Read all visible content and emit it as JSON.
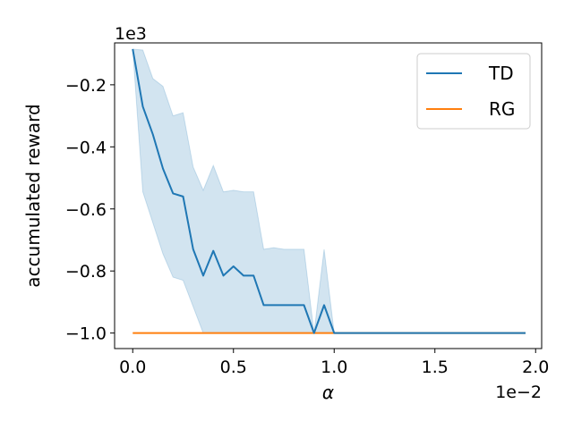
{
  "chart_data": {
    "type": "line",
    "xlabel": "α",
    "ylabel": "accumulated reward",
    "x_offset_label": "1e−2",
    "y_offset_label": "1e3",
    "xlim": [
      -0.0009,
      0.0203
    ],
    "ylim": [
      -1.05,
      -0.065
    ],
    "xticks": [
      0,
      0.005,
      0.01,
      0.015,
      0.02
    ],
    "xtick_labels": [
      "0.0",
      "0.5",
      "1.0",
      "1.5",
      "2.0"
    ],
    "yticks": [
      -1.0,
      -0.8,
      -0.6,
      -0.4,
      -0.2
    ],
    "ytick_labels": [
      "−1.0",
      "−0.8",
      "−0.6",
      "−0.4",
      "−0.2"
    ],
    "grid": false,
    "legend_position": "top-right",
    "colors": {
      "TD": "#1f77b4",
      "RG": "#ff7f0e",
      "band": "#1f77b4"
    },
    "x": [
      0,
      0.0005,
      0.001,
      0.0015,
      0.002,
      0.0025,
      0.003,
      0.0035,
      0.004,
      0.0045,
      0.005,
      0.0055,
      0.006,
      0.0065,
      0.007,
      0.0075,
      0.008,
      0.0085,
      0.009,
      0.0095,
      0.01,
      0.0105,
      0.011,
      0.0115,
      0.012,
      0.0125,
      0.013,
      0.0135,
      0.014,
      0.0145,
      0.015,
      0.0155,
      0.016,
      0.0165,
      0.017,
      0.0175,
      0.018,
      0.0185,
      0.019,
      0.0195
    ],
    "series": [
      {
        "name": "TD",
        "values": [
          -0.085,
          -0.27,
          -0.36,
          -0.47,
          -0.55,
          -0.56,
          -0.73,
          -0.815,
          -0.735,
          -0.815,
          -0.785,
          -0.815,
          -0.815,
          -0.91,
          -0.91,
          -0.91,
          -0.91,
          -0.91,
          -1.0,
          -0.91,
          -1.0,
          -1.0,
          -1.0,
          -1.0,
          -1.0,
          -1.0,
          -1.0,
          -1.0,
          -1.0,
          -1.0,
          -1.0,
          -1.0,
          -1.0,
          -1.0,
          -1.0,
          -1.0,
          -1.0,
          -1.0,
          -1.0,
          -1.0
        ],
        "band_upper": [
          -0.085,
          -0.088,
          -0.18,
          -0.205,
          -0.3,
          -0.29,
          -0.465,
          -0.54,
          -0.46,
          -0.545,
          -0.54,
          -0.545,
          -0.545,
          -0.73,
          -0.725,
          -0.73,
          -0.73,
          -0.73,
          -1.0,
          -0.73,
          -1.0,
          -1.0,
          -1.0,
          -1.0,
          -1.0,
          -1.0,
          -1.0,
          -1.0,
          -1.0,
          -1.0,
          -1.0,
          -1.0,
          -1.0,
          -1.0,
          -1.0,
          -1.0,
          -1.0,
          -1.0,
          -1.0,
          -1.0
        ],
        "band_lower": [
          -0.085,
          -0.545,
          -0.645,
          -0.745,
          -0.82,
          -0.83,
          -0.915,
          -1.0,
          -1.0,
          -1.0,
          -1.0,
          -1.0,
          -1.0,
          -1.0,
          -1.0,
          -1.0,
          -1.0,
          -1.0,
          -1.0,
          -1.0,
          -1.0,
          -1.0,
          -1.0,
          -1.0,
          -1.0,
          -1.0,
          -1.0,
          -1.0,
          -1.0,
          -1.0,
          -1.0,
          -1.0,
          -1.0,
          -1.0,
          -1.0,
          -1.0,
          -1.0,
          -1.0,
          -1.0,
          -1.0
        ]
      },
      {
        "name": "RG",
        "values": [
          -1.0,
          -1.0,
          -1.0,
          -1.0,
          -1.0,
          -1.0,
          -1.0,
          -1.0,
          -1.0,
          -1.0,
          -1.0,
          -1.0,
          -1.0,
          -1.0,
          -1.0,
          -1.0,
          -1.0,
          -1.0,
          -1.0,
          -1.0,
          -1.0,
          -1.0,
          -1.0,
          -1.0,
          -1.0,
          -1.0,
          -1.0,
          -1.0,
          -1.0,
          -1.0,
          -1.0,
          -1.0,
          -1.0,
          -1.0,
          -1.0,
          -1.0,
          -1.0,
          -1.0,
          -1.0,
          -1.0
        ]
      }
    ]
  }
}
